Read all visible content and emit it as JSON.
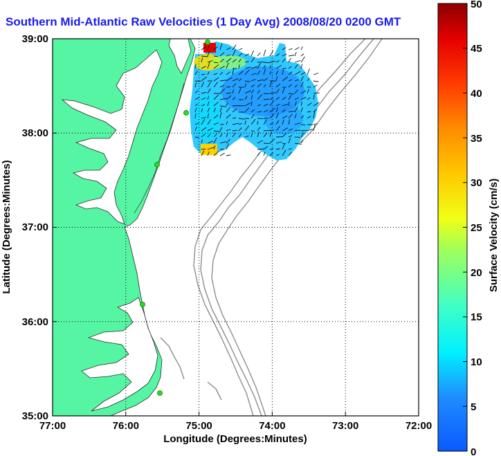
{
  "title": "Southern Mid-Atlantic Raw Velocities (1 Day Avg) 2008/08/20 0200 GMT",
  "map": {
    "xlabel": "Longitude (Degrees:Minutes)",
    "ylabel": "Latitude (Degrees:Minutes)",
    "lon_range": [
      -77,
      -72
    ],
    "lat_range": [
      35,
      39
    ],
    "x_ticks": [
      "77:00",
      "76:00",
      "75:00",
      "74:00",
      "73:00",
      "72:00"
    ],
    "y_ticks": [
      "39:00",
      "38:00",
      "37:00",
      "36:00",
      "35:00"
    ],
    "grid": "dotted",
    "land_color": "#56f5a3",
    "bathymetry_color": "#8c8c8c",
    "station_color": "#22dd22"
  },
  "colorbar": {
    "label": "Surface Velocity (cm/s)",
    "min": 0,
    "max": 50,
    "ticks": [
      "0",
      "5",
      "10",
      "15",
      "20",
      "25",
      "30",
      "35",
      "40",
      "45",
      "50"
    ],
    "colormap": "jet"
  }
}
